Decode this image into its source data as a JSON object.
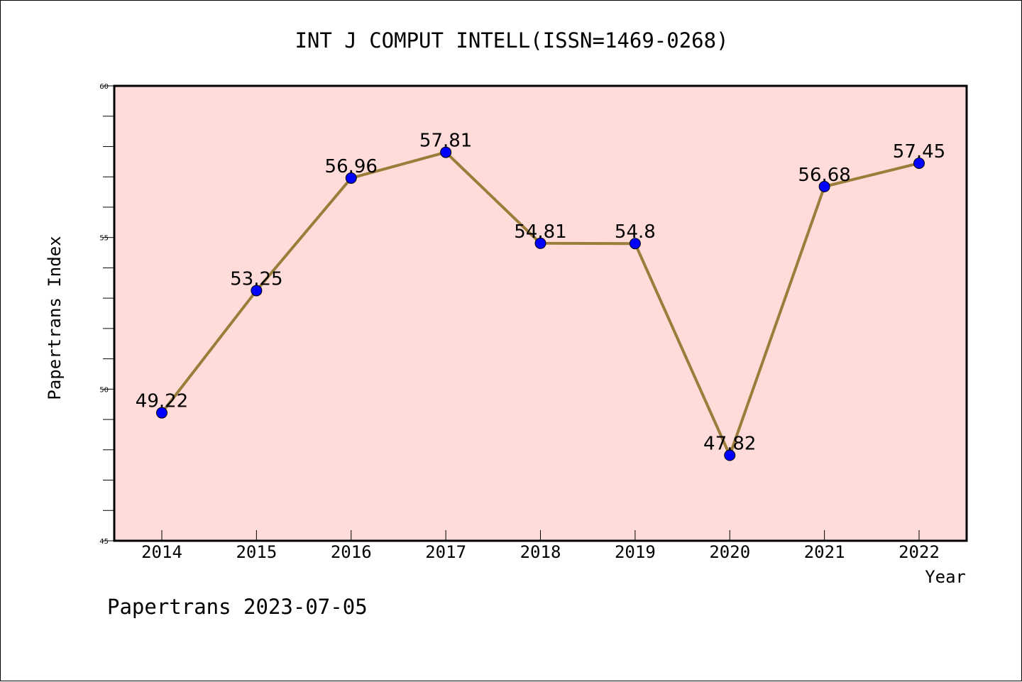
{
  "chart_data": {
    "type": "line",
    "title": "INT J COMPUT INTELL(ISSN=1469-0268)",
    "xlabel": "Year",
    "ylabel": "Papertrans Index",
    "categories": [
      "2014",
      "2015",
      "2016",
      "2017",
      "2018",
      "2019",
      "2020",
      "2021",
      "2022"
    ],
    "series": [
      {
        "values": [
          49.22,
          53.25,
          56.96,
          57.81,
          54.81,
          54.8,
          47.82,
          56.68,
          57.45
        ],
        "data_labels": [
          "49.22",
          "53.25",
          "56.96",
          "57.81",
          "54.81",
          "54.8",
          "47.82",
          "56.68",
          "57.45"
        ]
      }
    ],
    "ylim": [
      45,
      60
    ],
    "yticks": [
      45,
      50,
      55,
      60
    ],
    "ytick_labels": [
      "45",
      "50",
      "55",
      "60"
    ],
    "grid": false,
    "colors": {
      "line": "#9a7d3a",
      "marker": "#0000ff",
      "plot_background": "#ffdcda"
    }
  },
  "footer": "Papertrans 2023-07-05"
}
